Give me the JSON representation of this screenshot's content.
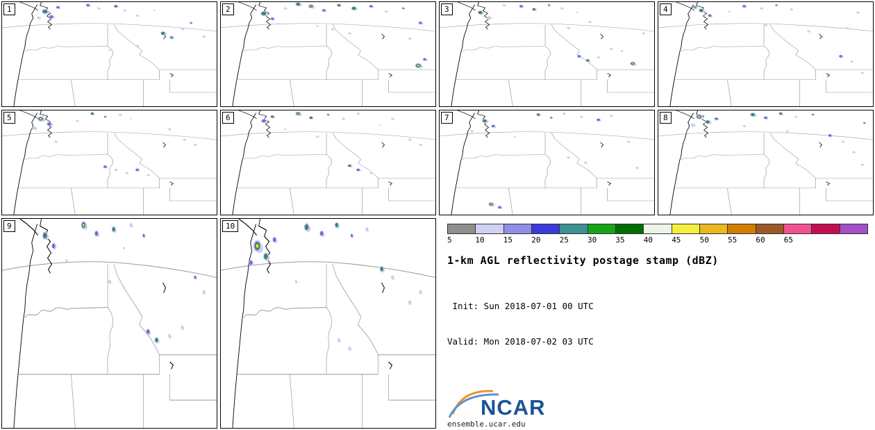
{
  "chart_data": {
    "type": "heatmap",
    "title": "1-km AGL reflectivity postage stamp (dBZ)",
    "init_line": " Init: Sun 2018-07-01 00 UTC",
    "valid_line": "Valid: Mon 2018-07-02 03 UTC",
    "units": "dBZ",
    "colorbar": {
      "ticks": [
        "5",
        "10",
        "15",
        "20",
        "25",
        "30",
        "35",
        "40",
        "45",
        "50",
        "55",
        "60",
        "65"
      ],
      "segments": [
        "#8f8f8f",
        "#d0d0f4",
        "#8f8fe8",
        "#3b3bdc",
        "#3d9191",
        "#16a316",
        "#006e00",
        "#eef3e7",
        "#f6ee3d",
        "#eab820",
        "#d07e00",
        "#9a5a2a",
        "#f05490",
        "#c11050",
        "#a44fc9"
      ]
    },
    "echo_level_colors": [
      "#9a9a9a",
      "#cfcff0",
      "#6a6ae0",
      "#16a316",
      "#f6ee3d"
    ],
    "members": [
      {
        "id": "1",
        "echoes": [
          [
            20,
            9,
            5,
            3
          ],
          [
            23,
            14,
            3.5,
            2
          ],
          [
            17,
            15,
            2.5,
            1
          ],
          [
            26,
            5,
            3,
            2
          ],
          [
            40,
            3,
            3,
            2
          ],
          [
            45,
            6,
            2,
            1
          ],
          [
            53,
            4,
            3,
            3
          ],
          [
            57,
            8,
            2,
            1
          ],
          [
            63,
            13,
            2,
            1
          ],
          [
            75,
            30,
            4,
            3
          ],
          [
            79,
            34,
            3,
            4
          ],
          [
            84,
            26,
            2,
            1
          ],
          [
            63,
            42,
            2,
            1
          ],
          [
            50,
            46,
            1.5,
            1
          ],
          [
            88,
            20,
            2,
            2
          ],
          [
            94,
            33,
            2,
            1
          ],
          [
            71,
            8,
            1.5,
            0
          ]
        ]
      },
      {
        "id": "2",
        "echoes": [
          [
            20,
            11,
            5,
            3
          ],
          [
            24,
            16,
            3,
            2
          ],
          [
            36,
            2,
            4,
            3
          ],
          [
            42,
            4,
            4,
            4
          ],
          [
            48,
            8,
            3,
            2
          ],
          [
            55,
            3,
            3,
            3
          ],
          [
            62,
            6,
            4,
            3
          ],
          [
            70,
            4,
            3,
            2
          ],
          [
            77,
            9,
            2,
            1
          ],
          [
            85,
            6,
            2,
            2
          ],
          [
            93,
            20,
            3,
            2
          ],
          [
            92,
            61,
            5,
            4
          ],
          [
            95,
            55,
            3,
            2
          ],
          [
            60,
            30,
            2,
            1
          ],
          [
            52,
            26,
            2,
            1
          ],
          [
            45,
            23,
            1.5,
            1
          ],
          [
            88,
            35,
            2,
            1
          ],
          [
            30,
            6,
            2,
            1
          ]
        ]
      },
      {
        "id": "3",
        "echoes": [
          [
            19,
            10,
            4,
            3
          ],
          [
            23,
            15,
            3,
            1
          ],
          [
            30,
            3,
            2,
            1
          ],
          [
            38,
            4,
            3,
            2
          ],
          [
            44,
            7,
            3,
            3
          ],
          [
            51,
            3,
            2,
            2
          ],
          [
            57,
            6,
            2,
            1
          ],
          [
            65,
            52,
            3,
            2
          ],
          [
            69,
            56,
            3,
            3
          ],
          [
            74,
            53,
            2,
            1
          ],
          [
            90,
            59,
            4,
            4
          ],
          [
            85,
            47,
            2,
            0
          ],
          [
            80,
            45,
            2,
            1
          ],
          [
            60,
            25,
            2,
            1
          ],
          [
            70,
            19,
            2,
            1
          ],
          [
            95,
            30,
            2,
            1
          ],
          [
            64,
            10,
            1.5,
            0
          ]
        ]
      },
      {
        "id": "4",
        "echoes": [
          [
            20,
            8,
            4,
            3
          ],
          [
            24,
            13,
            3,
            2
          ],
          [
            17,
            5,
            3,
            4
          ],
          [
            40,
            4,
            3,
            2
          ],
          [
            48,
            6,
            2,
            1
          ],
          [
            55,
            3,
            2,
            2
          ],
          [
            62,
            7,
            2,
            1
          ],
          [
            70,
            28,
            2,
            1
          ],
          [
            76,
            33,
            2,
            2
          ],
          [
            85,
            52,
            3,
            2
          ],
          [
            90,
            57,
            2,
            1
          ],
          [
            95,
            68,
            2,
            1
          ],
          [
            88,
            25,
            2,
            1
          ],
          [
            50,
            22,
            2,
            1
          ],
          [
            93,
            10,
            2,
            1
          ],
          [
            33,
            9,
            1.5,
            1
          ]
        ]
      },
      {
        "id": "5",
        "echoes": [
          [
            18,
            8,
            5,
            4
          ],
          [
            22,
            13,
            4,
            2
          ],
          [
            15,
            17,
            3,
            1
          ],
          [
            42,
            3,
            3,
            3
          ],
          [
            48,
            6,
            2,
            2
          ],
          [
            55,
            4,
            2,
            1
          ],
          [
            35,
            10,
            2,
            1
          ],
          [
            48,
            54,
            3,
            2
          ],
          [
            53,
            57,
            2,
            1
          ],
          [
            58,
            60,
            2,
            1
          ],
          [
            63,
            57,
            3,
            2
          ],
          [
            68,
            62,
            2,
            1
          ],
          [
            85,
            28,
            2,
            1
          ],
          [
            90,
            33,
            2,
            1
          ],
          [
            78,
            18,
            2,
            1
          ],
          [
            25,
            30,
            2,
            1
          ],
          [
            60,
            8,
            1.5,
            0
          ]
        ]
      },
      {
        "id": "6",
        "echoes": [
          [
            20,
            10,
            4,
            2
          ],
          [
            24,
            6,
            3,
            3
          ],
          [
            36,
            3,
            4,
            4
          ],
          [
            42,
            7,
            3,
            3
          ],
          [
            50,
            4,
            2,
            2
          ],
          [
            57,
            8,
            2,
            1
          ],
          [
            64,
            3,
            2,
            1
          ],
          [
            60,
            53,
            3,
            3
          ],
          [
            64,
            57,
            3,
            2
          ],
          [
            70,
            60,
            2,
            1
          ],
          [
            88,
            28,
            2,
            1
          ],
          [
            93,
            33,
            2,
            1
          ],
          [
            80,
            8,
            2,
            1
          ],
          [
            45,
            25,
            2,
            1
          ],
          [
            30,
            18,
            1.5,
            1
          ],
          [
            74,
            14,
            1.5,
            0
          ]
        ]
      },
      {
        "id": "7",
        "echoes": [
          [
            21,
            10,
            4,
            3
          ],
          [
            25,
            15,
            3,
            2
          ],
          [
            46,
            4,
            3,
            3
          ],
          [
            52,
            7,
            2,
            2
          ],
          [
            58,
            3,
            2,
            1
          ],
          [
            66,
            6,
            2,
            1
          ],
          [
            74,
            9,
            3,
            2
          ],
          [
            80,
            5,
            2,
            1
          ],
          [
            24,
            90,
            4,
            4
          ],
          [
            28,
            93,
            3,
            2
          ],
          [
            60,
            45,
            2,
            1
          ],
          [
            68,
            50,
            2,
            1
          ],
          [
            88,
            30,
            2,
            1
          ],
          [
            92,
            55,
            2,
            1
          ],
          [
            35,
            25,
            1.5,
            1
          ],
          [
            15,
            20,
            2,
            1
          ]
        ]
      },
      {
        "id": "8",
        "echoes": [
          [
            19,
            6,
            5,
            4
          ],
          [
            23,
            11,
            4,
            3
          ],
          [
            27,
            8,
            3,
            2
          ],
          [
            16,
            14,
            3,
            1
          ],
          [
            44,
            4,
            4,
            3
          ],
          [
            50,
            7,
            3,
            2
          ],
          [
            57,
            3,
            3,
            3
          ],
          [
            64,
            6,
            2,
            1
          ],
          [
            72,
            4,
            2,
            2
          ],
          [
            80,
            24,
            3,
            2
          ],
          [
            86,
            30,
            2,
            1
          ],
          [
            91,
            40,
            2,
            1
          ],
          [
            95,
            52,
            2,
            1
          ],
          [
            60,
            20,
            2,
            1
          ],
          [
            40,
            15,
            2,
            1
          ],
          [
            96,
            12,
            2,
            2
          ]
        ]
      },
      {
        "id": "9",
        "echoes": [
          [
            20,
            8,
            4,
            3
          ],
          [
            24,
            13,
            3,
            2
          ],
          [
            38,
            3,
            4,
            4
          ],
          [
            44,
            7,
            3,
            2
          ],
          [
            52,
            5,
            3,
            3
          ],
          [
            60,
            3,
            2,
            1
          ],
          [
            66,
            8,
            2,
            2
          ],
          [
            68,
            54,
            3,
            2
          ],
          [
            72,
            58,
            3,
            3
          ],
          [
            78,
            56,
            2,
            1
          ],
          [
            84,
            52,
            2,
            1
          ],
          [
            90,
            28,
            2,
            2
          ],
          [
            94,
            35,
            2,
            1
          ],
          [
            50,
            30,
            2,
            1
          ],
          [
            30,
            20,
            1.5,
            1
          ],
          [
            57,
            14,
            1.5,
            0
          ]
        ]
      },
      {
        "id": "10",
        "echoes": [
          [
            17,
            13,
            6,
            4
          ],
          [
            21,
            18,
            4,
            3
          ],
          [
            14,
            21,
            3,
            2
          ],
          [
            25,
            10,
            3,
            2
          ],
          [
            40,
            4,
            4,
            3
          ],
          [
            47,
            7,
            3,
            2
          ],
          [
            54,
            3,
            3,
            3
          ],
          [
            61,
            8,
            2,
            2
          ],
          [
            68,
            5,
            2,
            1
          ],
          [
            75,
            24,
            3,
            3
          ],
          [
            80,
            28,
            2,
            1
          ],
          [
            55,
            58,
            2,
            1
          ],
          [
            60,
            62,
            2,
            1
          ],
          [
            88,
            40,
            2,
            1
          ],
          [
            93,
            35,
            2,
            1
          ],
          [
            35,
            30,
            1.5,
            1
          ]
        ]
      }
    ]
  },
  "branding": {
    "logo_text": "NCAR",
    "site_text": "ensemble.ucar.edu"
  }
}
